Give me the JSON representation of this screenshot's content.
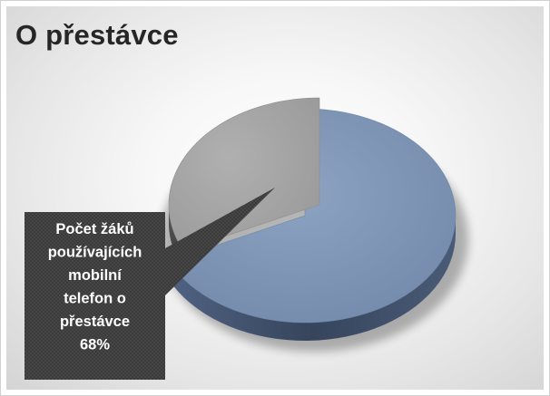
{
  "chart_data": {
    "type": "pie",
    "style": "3d-exploded",
    "title": "O přestávce",
    "slices": [
      {
        "label": "Počet žáků používajících mobilní telefon o přestávce",
        "value": 68,
        "color": "#7f96b6"
      },
      {
        "label": "",
        "value": 32,
        "color": "#a3a3a3"
      }
    ],
    "data_labels": [
      [
        "Počet žáků",
        "používajících",
        "mobilní",
        "telefon o",
        "přestávce",
        "68%"
      ]
    ],
    "legend": "none"
  },
  "colors": {
    "blue_top": "#7f96b6",
    "blue_side": "#3b4b63",
    "gray_top": "#a3a3a3",
    "gray_side": "#4a4a4a",
    "callout_bg": "#3c3c3c"
  }
}
